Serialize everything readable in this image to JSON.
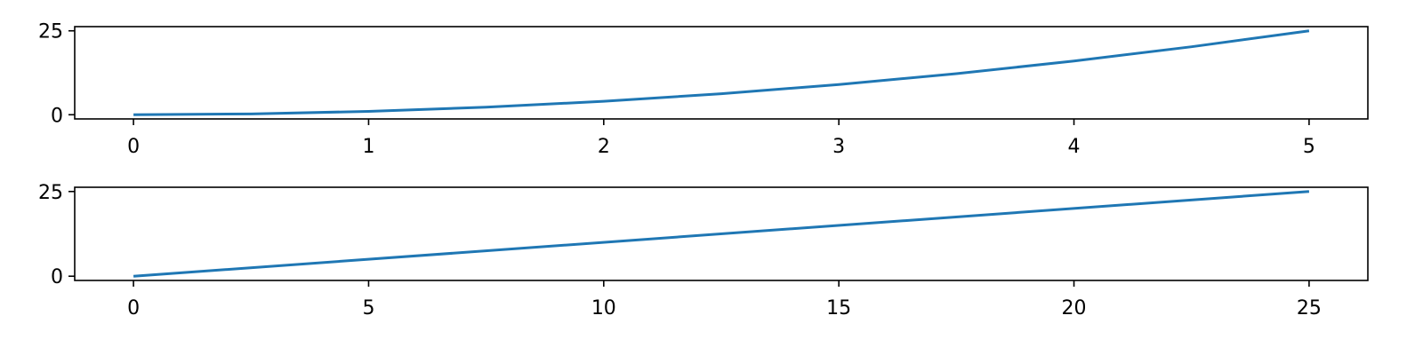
{
  "chart_data": [
    {
      "type": "line",
      "title": "",
      "xlabel": "",
      "ylabel": "",
      "xlim": [
        -0.25,
        5.25
      ],
      "ylim": [
        -1.25,
        26.25
      ],
      "xticks": [
        0,
        1,
        2,
        3,
        4,
        5
      ],
      "xtick_labels": [
        "0",
        "1",
        "2",
        "3",
        "4",
        "5"
      ],
      "yticks": [
        0,
        25
      ],
      "ytick_labels": [
        "0",
        "25"
      ],
      "grid": false,
      "series": [
        {
          "color": "#1f77b4",
          "x": [
            0,
            0.5,
            1,
            1.5,
            2,
            2.5,
            3,
            3.5,
            4,
            4.5,
            5
          ],
          "y": [
            0,
            0.25,
            1,
            2.25,
            4,
            6.25,
            9,
            12.25,
            16,
            20.25,
            25
          ]
        }
      ]
    },
    {
      "type": "line",
      "title": "",
      "xlabel": "",
      "ylabel": "",
      "xlim": [
        -1.25,
        26.25
      ],
      "ylim": [
        -1.25,
        26.25
      ],
      "xticks": [
        0,
        5,
        10,
        15,
        20,
        25
      ],
      "xtick_labels": [
        "0",
        "5",
        "10",
        "15",
        "20",
        "25"
      ],
      "yticks": [
        0,
        25
      ],
      "ytick_labels": [
        "0",
        "25"
      ],
      "grid": false,
      "series": [
        {
          "color": "#1f77b4",
          "x": [
            0,
            25
          ],
          "y": [
            0,
            25
          ]
        }
      ]
    }
  ]
}
